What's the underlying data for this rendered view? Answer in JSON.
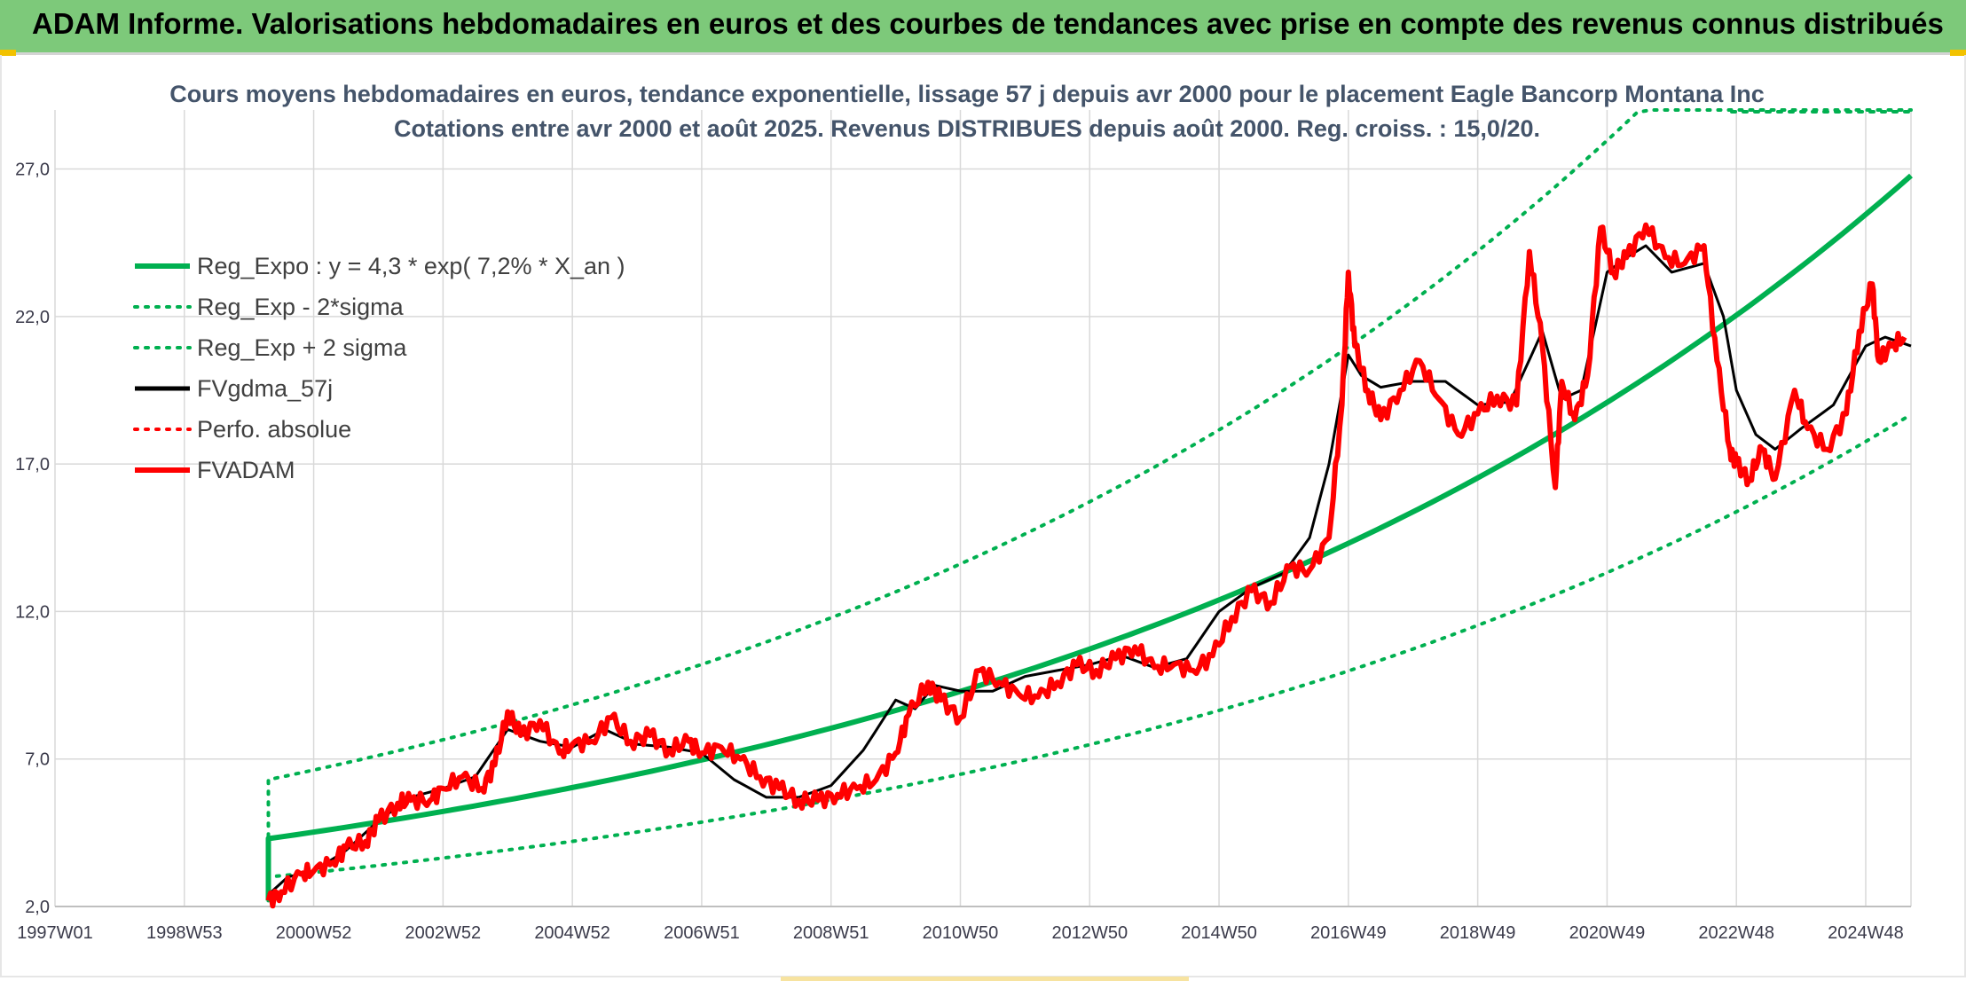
{
  "header": {
    "banner_title": "ADAM Informe. Valorisations hebdomadaires en euros et des courbes de tendances avec prise en compte des revenus connus distribués"
  },
  "colors": {
    "banner": "#7dc97a",
    "trend": "#00b050",
    "smoothed": "#000000",
    "price": "#ff0000",
    "grid": "#d9d9d9",
    "axis_text": "#3a3a4a",
    "title_text": "#44546a"
  },
  "chart_data": {
    "type": "line",
    "title": "Cours moyens hebdomadaires en euros, tendance exponentielle, lissage 57 j depuis avr 2000 pour le placement Eagle Bancorp Montana Inc",
    "subtitle": "Cotations entre avr 2000 et août 2025. Revenus DISTRIBUES depuis août 2000. Reg. croiss. : 15,0/20.",
    "xlabel": "",
    "ylabel": "",
    "ylim": [
      2,
      29
    ],
    "yticks": [
      2.0,
      7.0,
      12.0,
      17.0,
      22.0,
      27.0
    ],
    "ytick_labels": [
      "2,0",
      "7,0",
      "12,0",
      "17,0",
      "22,0",
      "27,0"
    ],
    "xlim": [
      1997.0,
      2025.7
    ],
    "xticks": [
      {
        "label": "1997W01",
        "x": 1997.0
      },
      {
        "label": "1998W53",
        "x": 1999.0
      },
      {
        "label": "2000W52",
        "x": 2001.0
      },
      {
        "label": "2002W52",
        "x": 2003.0
      },
      {
        "label": "2004W52",
        "x": 2005.0
      },
      {
        "label": "2006W51",
        "x": 2007.0
      },
      {
        "label": "2008W51",
        "x": 2009.0
      },
      {
        "label": "2010W50",
        "x": 2011.0
      },
      {
        "label": "2012W50",
        "x": 2013.0
      },
      {
        "label": "2014W50",
        "x": 2015.0
      },
      {
        "label": "2016W49",
        "x": 2017.0
      },
      {
        "label": "2018W49",
        "x": 2019.0
      },
      {
        "label": "2020W49",
        "x": 2021.0
      },
      {
        "label": "2022W48",
        "x": 2023.0
      },
      {
        "label": "2024W48",
        "x": 2025.0
      }
    ],
    "grid": true,
    "legend_position": "top-left",
    "series": [
      {
        "name": "Reg_Expo : y = 4,3 * exp( 7,2% *  X_an )",
        "style": "solid-thick",
        "color": "#00b050",
        "x": [
          2000.3,
          2025.7
        ],
        "y_at_start": 4.3,
        "growth_rate": 0.072
      },
      {
        "name": "Reg_Exp - 2*sigma",
        "style": "dotted",
        "color": "#00b050",
        "x": [
          2000.3,
          2025.7
        ],
        "y_at_start": 3.0,
        "growth_rate": 0.072
      },
      {
        "name": "Reg_Exp + 2 sigma",
        "style": "dotted",
        "color": "#00b050",
        "x": [
          2000.3,
          2025.7
        ],
        "y_at_start": 6.3,
        "growth_rate": 0.072
      },
      {
        "name": "FVgdma_57j",
        "style": "solid",
        "color": "#000000",
        "x": [
          2000.3,
          2000.6,
          2001.0,
          2001.5,
          2002.0,
          2002.5,
          2003.0,
          2003.5,
          2004.0,
          2004.5,
          2005.0,
          2005.5,
          2006.0,
          2006.5,
          2007.0,
          2007.5,
          2008.0,
          2008.5,
          2009.0,
          2009.5,
          2010.0,
          2010.3,
          2010.6,
          2011.0,
          2011.5,
          2012.0,
          2012.5,
          2013.0,
          2013.5,
          2014.0,
          2014.5,
          2015.0,
          2015.5,
          2016.0,
          2016.4,
          2016.7,
          2017.0,
          2017.2,
          2017.5,
          2018.0,
          2018.5,
          2019.0,
          2019.5,
          2020.0,
          2020.3,
          2020.6,
          2021.0,
          2021.3,
          2021.6,
          2022.0,
          2022.5,
          2022.8,
          2023.0,
          2023.3,
          2023.6,
          2024.0,
          2024.5,
          2025.0,
          2025.3,
          2025.7
        ],
        "y": [
          2.4,
          3.0,
          3.2,
          3.9,
          4.9,
          5.7,
          6.0,
          6.4,
          8.0,
          7.6,
          7.4,
          8.0,
          7.5,
          7.4,
          7.2,
          6.3,
          5.7,
          5.7,
          6.1,
          7.3,
          9.0,
          8.7,
          9.5,
          9.3,
          9.3,
          9.8,
          10.0,
          10.2,
          10.5,
          10.1,
          10.4,
          12.0,
          12.8,
          13.3,
          14.5,
          17.0,
          20.7,
          20.0,
          19.6,
          19.8,
          19.8,
          19.0,
          19.1,
          21.5,
          19.2,
          19.5,
          23.5,
          24.0,
          24.4,
          23.5,
          23.8,
          22.0,
          19.5,
          18.0,
          17.5,
          18.2,
          19.0,
          21.0,
          21.3,
          21.0
        ]
      },
      {
        "name": "Perfo. absolue",
        "style": "dotted",
        "color": "#ff0000",
        "x": [],
        "y": []
      },
      {
        "name": "FVADAM",
        "style": "solid-thick",
        "color": "#ff0000",
        "x": [
          2000.3,
          2000.5,
          2000.8,
          2001.0,
          2001.3,
          2001.5,
          2001.8,
          2002.0,
          2002.3,
          2002.5,
          2002.8,
          2003.0,
          2003.3,
          2003.6,
          2003.8,
          2004.0,
          2004.2,
          2004.5,
          2004.8,
          2005.0,
          2005.3,
          2005.6,
          2005.9,
          2006.2,
          2006.5,
          2006.8,
          2007.0,
          2007.3,
          2007.6,
          2007.9,
          2008.2,
          2008.5,
          2008.8,
          2009.1,
          2009.4,
          2009.7,
          2010.0,
          2010.2,
          2010.5,
          2010.7,
          2011.0,
          2011.3,
          2011.6,
          2011.9,
          2012.2,
          2012.5,
          2012.8,
          2013.1,
          2013.4,
          2013.7,
          2014.0,
          2014.3,
          2014.6,
          2014.9,
          2015.2,
          2015.5,
          2015.8,
          2016.1,
          2016.4,
          2016.7,
          2016.9,
          2017.0,
          2017.1,
          2017.3,
          2017.5,
          2017.8,
          2018.1,
          2018.4,
          2018.7,
          2019.0,
          2019.3,
          2019.6,
          2019.8,
          2020.0,
          2020.2,
          2020.3,
          2020.5,
          2020.7,
          2020.9,
          2021.1,
          2021.3,
          2021.6,
          2021.9,
          2022.2,
          2022.5,
          2022.7,
          2022.9,
          2023.0,
          2023.2,
          2023.4,
          2023.6,
          2023.9,
          2024.1,
          2024.4,
          2024.7,
          2024.9,
          2025.1,
          2025.2,
          2025.4,
          2025.6
        ],
        "y": [
          2.2,
          2.5,
          3.1,
          3.2,
          3.5,
          4.0,
          4.2,
          4.9,
          5.5,
          5.6,
          5.6,
          6.0,
          6.4,
          6.0,
          6.8,
          8.6,
          7.8,
          8.3,
          7.2,
          7.5,
          7.6,
          8.4,
          7.6,
          7.8,
          7.3,
          7.6,
          7.2,
          7.4,
          7.0,
          6.4,
          6.0,
          5.6,
          5.6,
          5.8,
          6.0,
          6.3,
          7.2,
          8.5,
          9.6,
          9.0,
          8.4,
          10.0,
          9.6,
          9.2,
          9.1,
          9.6,
          10.2,
          10.0,
          10.4,
          10.8,
          10.1,
          10.2,
          10.0,
          10.5,
          11.8,
          12.7,
          12.3,
          13.5,
          13.4,
          14.5,
          19.0,
          23.5,
          21.0,
          19.5,
          18.5,
          19.5,
          20.5,
          19.2,
          18.0,
          18.7,
          19.3,
          19.0,
          24.2,
          21.0,
          16.2,
          19.8,
          18.5,
          20.0,
          25.0,
          23.5,
          24.0,
          25.1,
          24.0,
          23.8,
          24.4,
          20.5,
          17.5,
          17.0,
          16.5,
          17.5,
          16.5,
          19.5,
          18.2,
          17.5,
          18.7,
          21.5,
          23.1,
          20.5,
          21.0,
          21.3
        ]
      }
    ]
  }
}
